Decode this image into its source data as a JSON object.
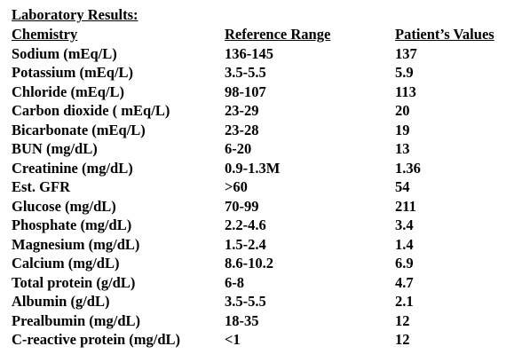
{
  "title": "Laboratory Results:",
  "columns": [
    "Chemistry",
    "Reference Range",
    "Patient’s Values"
  ],
  "rows": [
    {
      "test": "Sodium (mEq/L)",
      "range": "136-145",
      "value": "137"
    },
    {
      "test": "Potassium (mEq/L)",
      "range": "3.5-5.5",
      "value": "5.9"
    },
    {
      "test": "Chloride (mEq/L)",
      "range": "98-107",
      "value": "113"
    },
    {
      "test": "Carbon dioxide ( mEq/L)",
      "range": "23-29",
      "value": "20"
    },
    {
      "test": "Bicarbonate (mEq/L)",
      "range": "23-28",
      "value": "19"
    },
    {
      "test": "BUN (mg/dL)",
      "range": "6-20",
      "value": "13"
    },
    {
      "test": "Creatinine (mg/dL)",
      "range": "0.9-1.3M",
      "value": "1.36"
    },
    {
      "test": "Est. GFR",
      "range": ">60",
      "value": "54"
    },
    {
      "test": "Glucose (mg/dL)",
      "range": "70-99",
      "value": "211"
    },
    {
      "test": "Phosphate (mg/dL)",
      "range": "2.2-4.6",
      "value": "3.4"
    },
    {
      "test": "Magnesium (mg/dL)",
      "range": "1.5-2.4",
      "value": "1.4"
    },
    {
      "test": "Calcium (mg/dL)",
      "range": "8.6-10.2",
      "value": "6.9"
    },
    {
      "test": "Total protein (g/dL)",
      "range": "6-8",
      "value": "4.7"
    },
    {
      "test": "Albumin (g/dL)",
      "range": "3.5-5.5",
      "value": "2.1"
    },
    {
      "test": "Prealbumin (mg/dL)",
      "range": "18-35",
      "value": "12"
    },
    {
      "test": "C-reactive protein (mg/dL)",
      "range": "<1",
      "value": "12"
    }
  ]
}
